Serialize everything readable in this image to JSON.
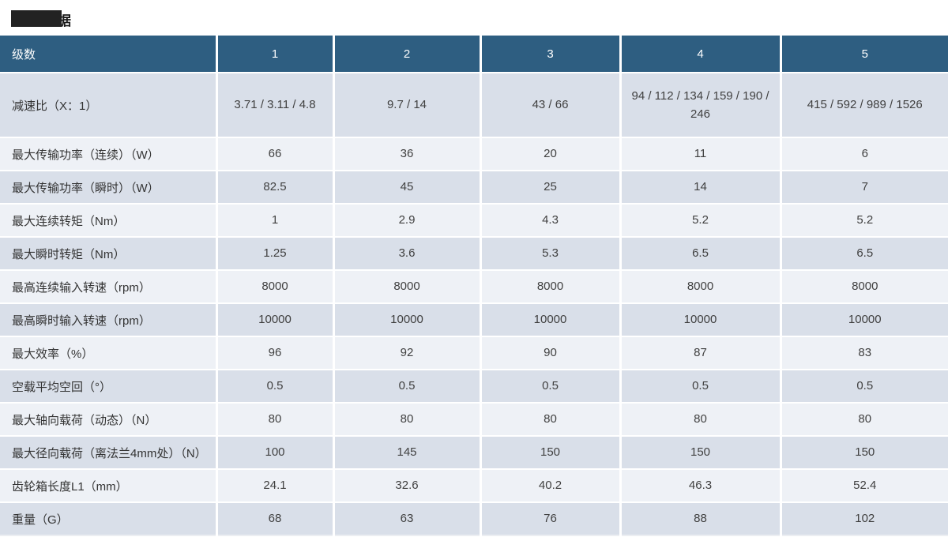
{
  "page": {
    "title": "技术数据"
  },
  "colors": {
    "header_bg": "#2e5e81",
    "row_odd_bg": "#d9dfe9",
    "row_even_bg": "#eef1f6",
    "redaction_box": "#222222"
  },
  "table": {
    "header": {
      "label": "级数",
      "columns": [
        "1",
        "2",
        "3",
        "4",
        "5"
      ]
    },
    "rows": [
      {
        "label": "减速比（X：1）",
        "values": [
          "3.71 / 3.11 / 4.8",
          "9.7 / 14",
          "43 / 66",
          "94 / 112 / 134 / 159 / 190 / 246",
          "415 / 592 / 989 / 1526"
        ]
      },
      {
        "label": "最大传输功率（连续）（W）",
        "values": [
          "66",
          "36",
          "20",
          "11",
          "6"
        ]
      },
      {
        "label": "最大传输功率（瞬时）（W）",
        "values": [
          "82.5",
          "45",
          "25",
          "14",
          "7"
        ]
      },
      {
        "label": "最大连续转矩（Nm）",
        "values": [
          "1",
          "2.9",
          "4.3",
          "5.2",
          "5.2"
        ]
      },
      {
        "label": "最大瞬时转矩（Nm）",
        "values": [
          "1.25",
          "3.6",
          "5.3",
          "6.5",
          "6.5"
        ]
      },
      {
        "label": "最高连续输入转速（rpm）",
        "values": [
          "8000",
          "8000",
          "8000",
          "8000",
          "8000"
        ]
      },
      {
        "label": "最高瞬时输入转速（rpm）",
        "values": [
          "10000",
          "10000",
          "10000",
          "10000",
          "10000"
        ]
      },
      {
        "label": "最大效率（%）",
        "values": [
          "96",
          "92",
          "90",
          "87",
          "83"
        ]
      },
      {
        "label": "空载平均空回（°）",
        "values": [
          "0.5",
          "0.5",
          "0.5",
          "0.5",
          "0.5"
        ]
      },
      {
        "label": "最大轴向载荷（动态）（N）",
        "values": [
          "80",
          "80",
          "80",
          "80",
          "80"
        ]
      },
      {
        "label": "最大径向载荷（离法兰4mm处）（N）",
        "values": [
          "100",
          "145",
          "150",
          "150",
          "150"
        ]
      },
      {
        "label": "齿轮箱长度L1（mm）",
        "values": [
          "24.1",
          "32.6",
          "40.2",
          "46.3",
          "52.4"
        ]
      },
      {
        "label": "重量（G）",
        "values": [
          "68",
          "63",
          "76",
          "88",
          "102"
        ]
      }
    ]
  }
}
